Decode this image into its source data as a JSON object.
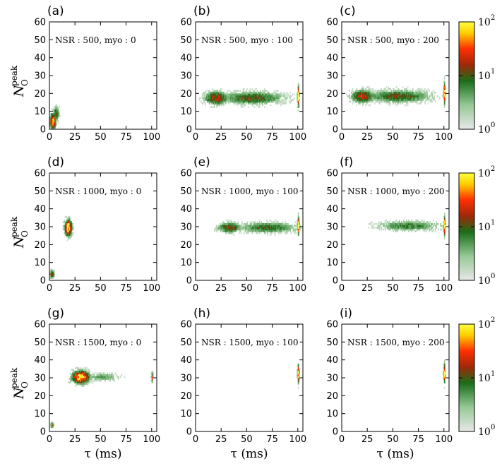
{
  "chart_data": {
    "type": "heatmap",
    "description_layout": "3x3 grid of 2D histograms with a log color bar per row",
    "x_axis": {
      "label": "τ (ms)",
      "ticks": [
        0,
        25,
        50,
        75,
        100
      ],
      "range": [
        0,
        105
      ]
    },
    "y_axis": {
      "label_main": "N",
      "label_sub": "O",
      "label_sup": "peak",
      "ticks": [
        0,
        10,
        20,
        30,
        40,
        50,
        60
      ],
      "range": [
        0,
        60
      ]
    },
    "colorbar": {
      "scale": "log",
      "ticks": [
        {
          "base": "10",
          "exp": "0"
        },
        {
          "base": "10",
          "exp": "1"
        },
        {
          "base": "10",
          "exp": "2"
        }
      ],
      "colors": [
        "#e6e6e6",
        "#1a6e1a",
        "#b42a05",
        "#ff3000",
        "#ffd000",
        "#ffff40"
      ]
    },
    "panels": [
      {
        "label": "(a)",
        "text": "NSR : 500, myo : 0",
        "blobs": [
          {
            "x": 3,
            "y": 4,
            "sx": 2,
            "sy": 3,
            "peak": 2.0
          },
          {
            "x": 6,
            "y": 8,
            "sx": 2,
            "sy": 3,
            "peak": 1.1
          }
        ]
      },
      {
        "label": "(b)",
        "text": "NSR : 500, myo : 100",
        "blobs": [
          {
            "x": 20,
            "y": 17,
            "sx": 8,
            "sy": 2.5,
            "peak": 1.35
          },
          {
            "x": 55,
            "y": 17,
            "sx": 22,
            "sy": 2.5,
            "peak": 1.05
          },
          {
            "x": 100,
            "y": 18,
            "sx": 0.6,
            "sy": 4,
            "peak": 2.0
          }
        ]
      },
      {
        "label": "(c)",
        "text": "NSR : 500, myo : 200",
        "blobs": [
          {
            "x": 20,
            "y": 18,
            "sx": 8,
            "sy": 2.5,
            "peak": 1.35
          },
          {
            "x": 55,
            "y": 18,
            "sx": 22,
            "sy": 2.5,
            "peak": 1.05
          },
          {
            "x": 100,
            "y": 20,
            "sx": 0.6,
            "sy": 4,
            "peak": 2.0
          }
        ]
      },
      {
        "label": "(d)",
        "text": "NSR : 1000, myo : 0",
        "blobs": [
          {
            "x": 18,
            "y": 29,
            "sx": 2.5,
            "sy": 3,
            "peak": 2.1
          },
          {
            "x": 2,
            "y": 3,
            "sx": 1.5,
            "sy": 1.5,
            "peak": 1.4
          }
        ]
      },
      {
        "label": "(e)",
        "text": "NSR : 1000, myo : 100",
        "blobs": [
          {
            "x": 33,
            "y": 29,
            "sx": 8,
            "sy": 2,
            "peak": 1.2
          },
          {
            "x": 70,
            "y": 29,
            "sx": 20,
            "sy": 2,
            "peak": 1.0
          },
          {
            "x": 100,
            "y": 30,
            "sx": 0.6,
            "sy": 3.5,
            "peak": 2.0
          }
        ]
      },
      {
        "label": "(f)",
        "text": "NSR : 1000, myo : 200",
        "blobs": [
          {
            "x": 65,
            "y": 30,
            "sx": 22,
            "sy": 2,
            "peak": 0.85
          },
          {
            "x": 100,
            "y": 30,
            "sx": 0.6,
            "sy": 3.5,
            "peak": 2.0
          }
        ]
      },
      {
        "label": "(g)",
        "text": "NSR : 1500, myo : 0",
        "blobs": [
          {
            "x": 30,
            "y": 30,
            "sx": 6,
            "sy": 2.5,
            "peak": 2.0
          },
          {
            "x": 52,
            "y": 30,
            "sx": 12,
            "sy": 1.5,
            "peak": 0.7
          },
          {
            "x": 100,
            "y": 30,
            "sx": 0.6,
            "sy": 2,
            "peak": 1.5
          },
          {
            "x": 2,
            "y": 3,
            "sx": 1,
            "sy": 1,
            "peak": 1.4
          }
        ]
      },
      {
        "label": "(h)",
        "text": "NSR : 1500, myo : 100",
        "blobs": [
          {
            "x": 100,
            "y": 32,
            "sx": 0.6,
            "sy": 3.5,
            "peak": 2.0
          }
        ]
      },
      {
        "label": "(i)",
        "text": "NSR : 1500, myo : 200",
        "blobs": [
          {
            "x": 100,
            "y": 32,
            "sx": 0.6,
            "sy": 3.5,
            "peak": 2.0
          }
        ]
      }
    ]
  }
}
